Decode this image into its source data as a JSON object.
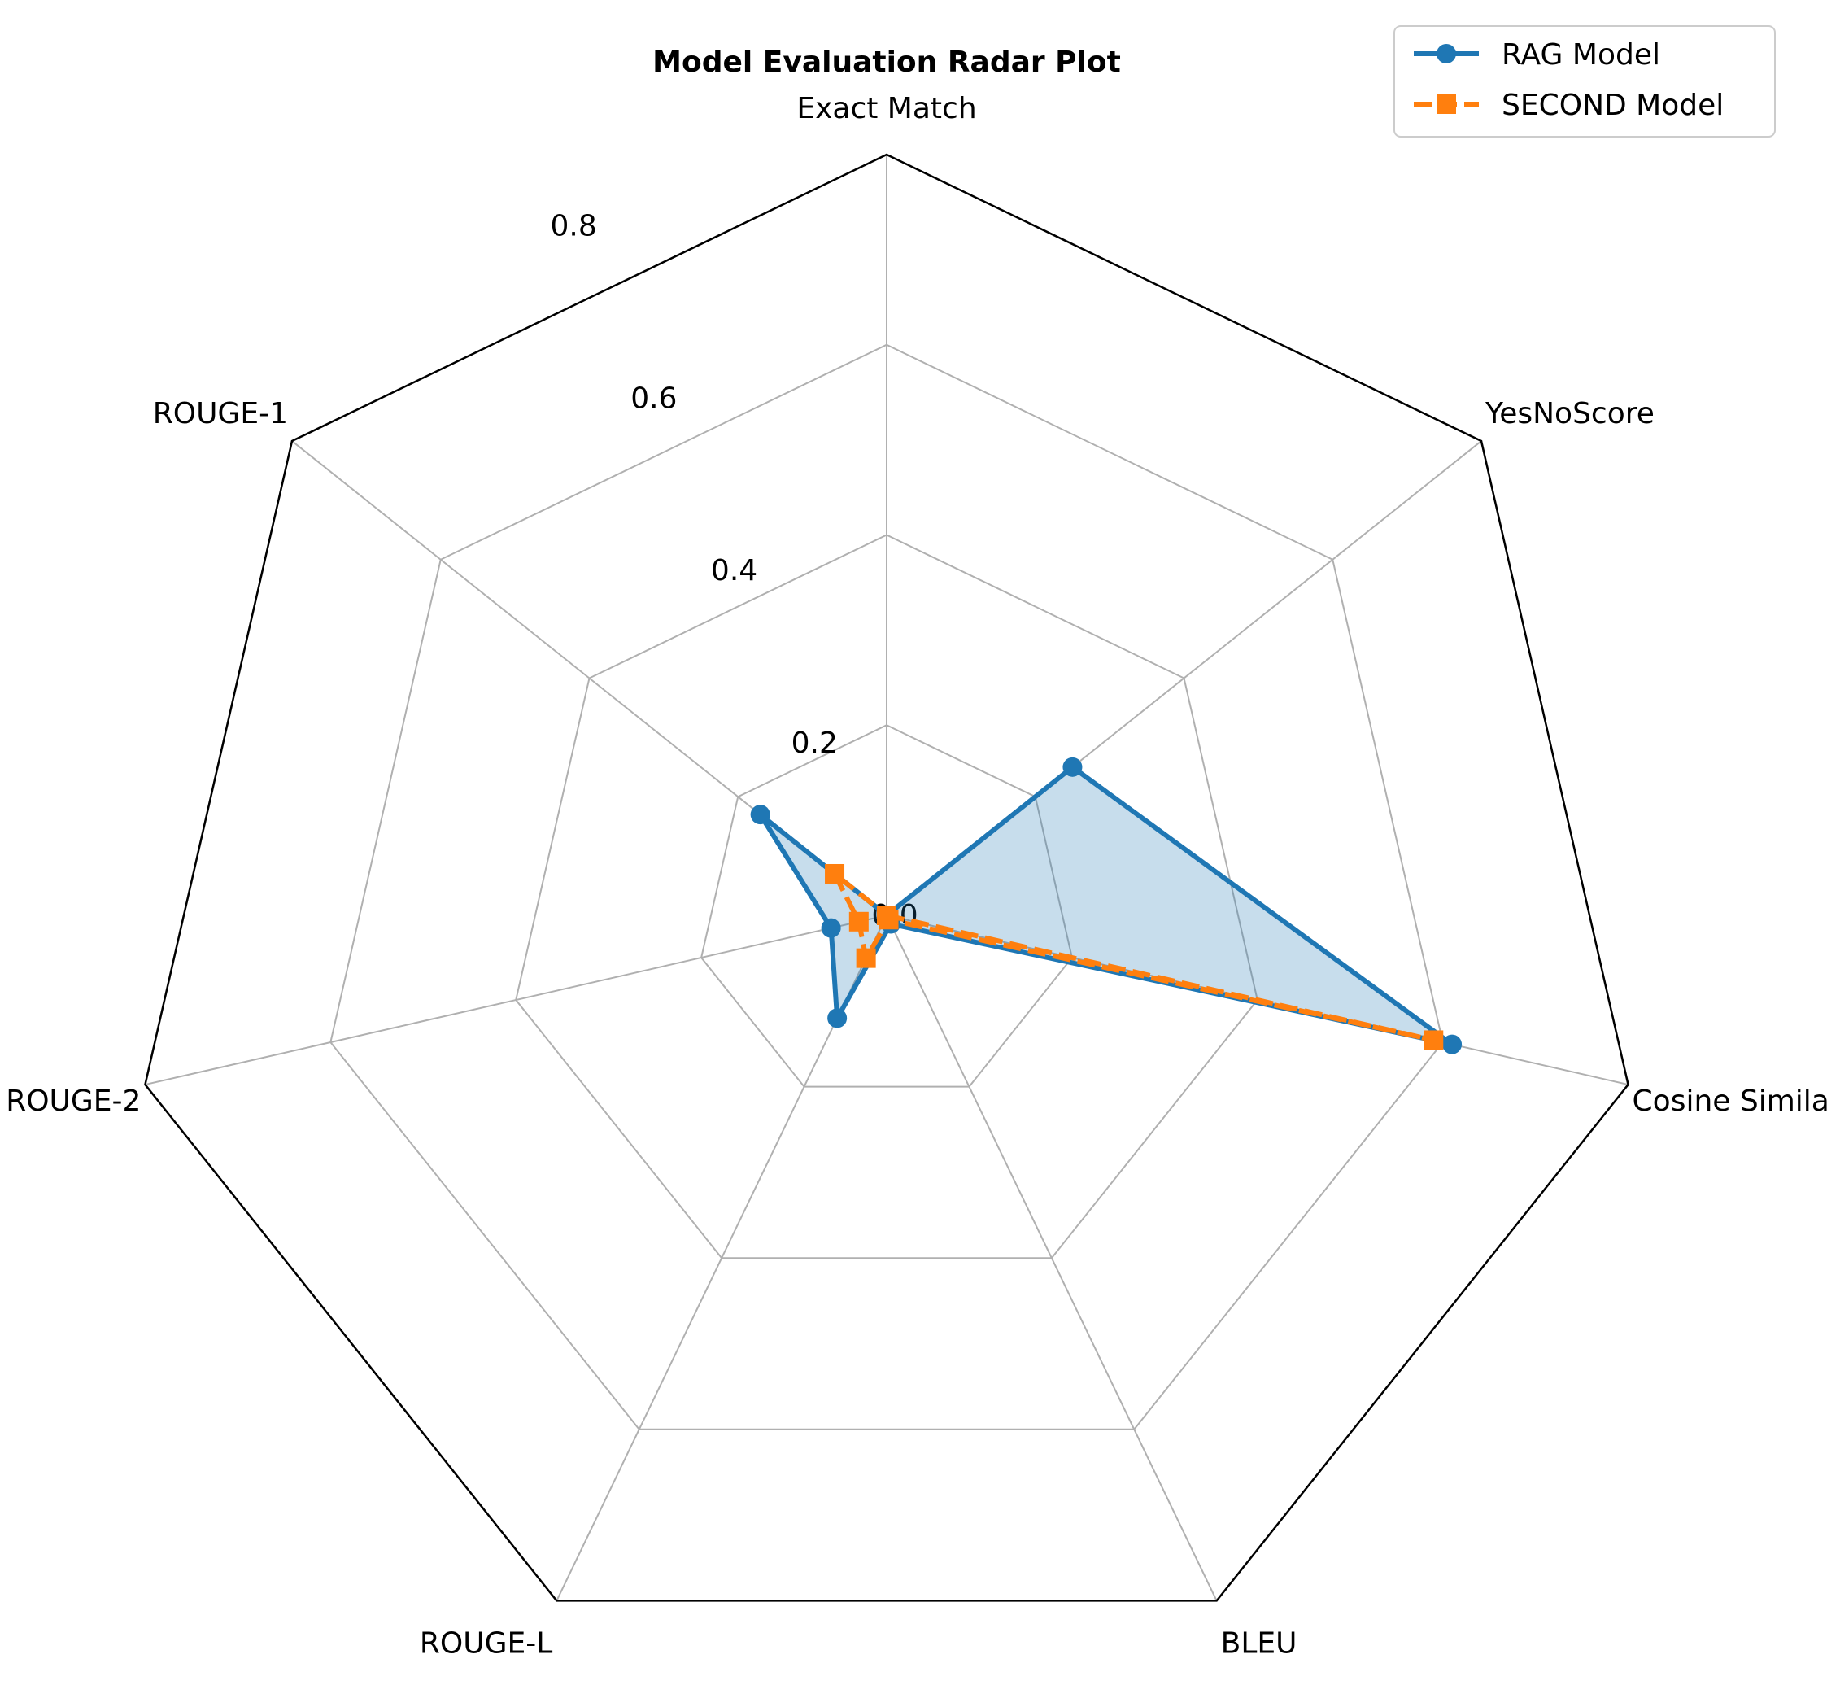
{
  "chart_data": {
    "type": "radar",
    "title": "Model Evaluation Radar Plot",
    "categories": [
      "Exact Match",
      "YesNoScore",
      "Cosine Similarity",
      "BLEU",
      "ROUGE-L",
      "ROUGE-2",
      "ROUGE-1"
    ],
    "radial_ticks": [
      "0.0",
      "0.2",
      "0.4",
      "0.6",
      "0.8"
    ],
    "radial_tick_values": [
      0.0,
      0.2,
      0.4,
      0.6,
      0.8
    ],
    "rlim": [
      0.0,
      0.8
    ],
    "grid": true,
    "legend_position": "top-right",
    "series": [
      {
        "name": "RAG Model",
        "values": [
          0.0,
          0.25,
          0.61,
          0.01,
          0.12,
          0.06,
          0.17
        ],
        "color": "#1f77b4",
        "marker": "circle",
        "line_style": "solid",
        "filled": true
      },
      {
        "name": "SECOND Model",
        "values": [
          0.0,
          0.0,
          0.59,
          0.005,
          0.05,
          0.03,
          0.07
        ],
        "color": "#ff7f0e",
        "marker": "square",
        "line_style": "dashed",
        "filled": false
      }
    ]
  }
}
